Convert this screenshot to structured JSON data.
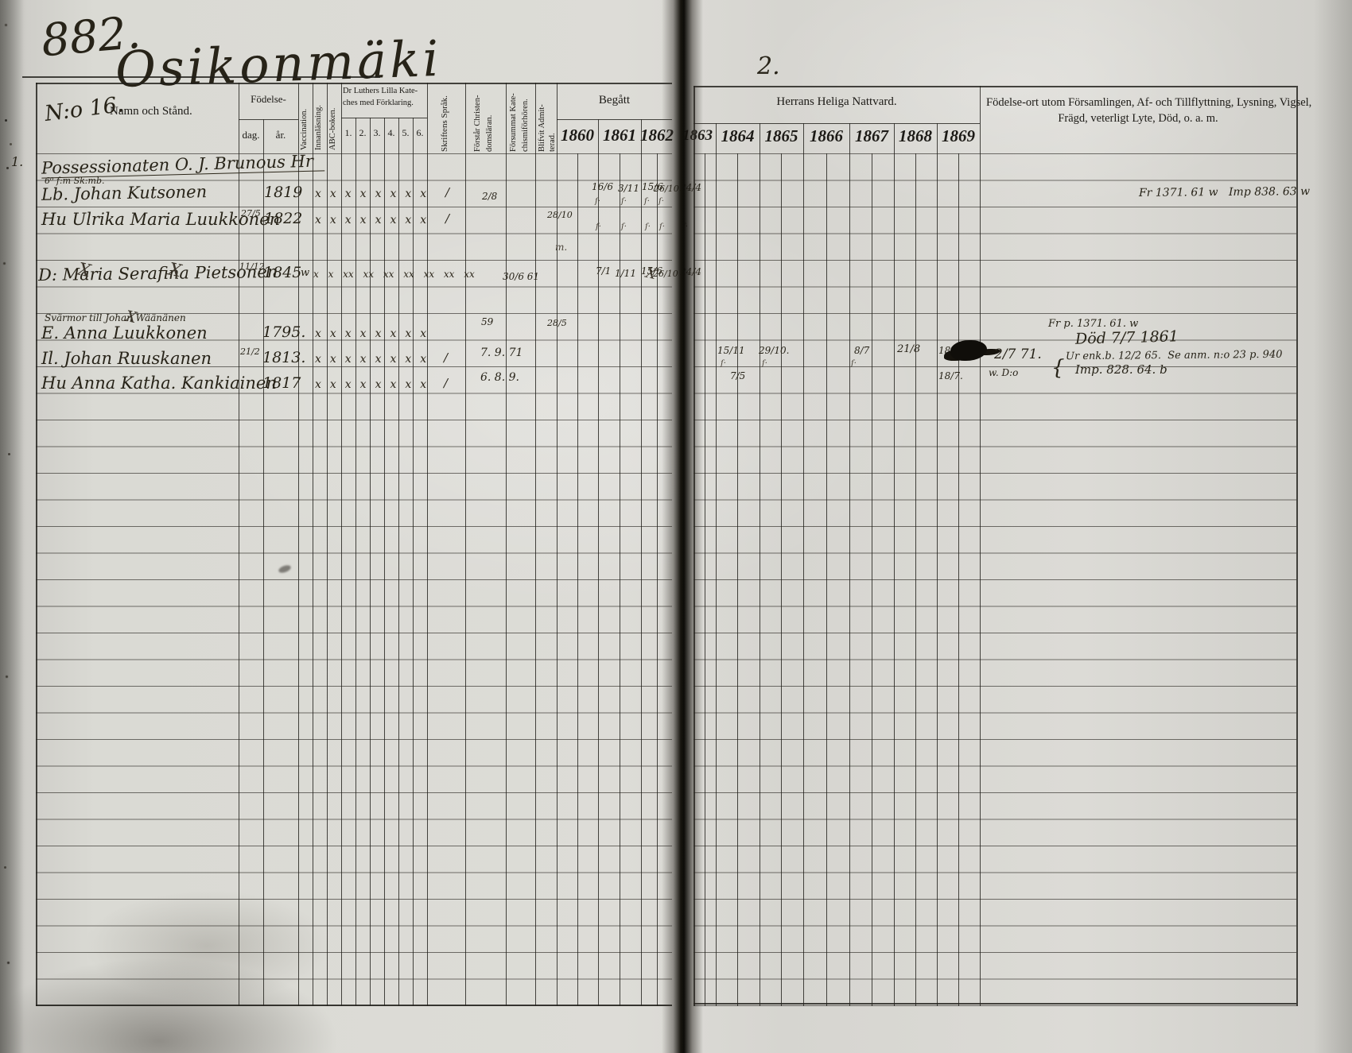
{
  "page": {
    "book_number": "882.",
    "title": "Osikonmäki",
    "right_page_number": "2."
  },
  "header": {
    "no_label": "N:o 16.",
    "name": "Namn och Stånd.",
    "birth": "Födelse-",
    "birth_day": "dag.",
    "birth_year": "år.",
    "vaccination": "Vaccination.",
    "reading": "Innanläsning.",
    "abc": "ABC-boken.",
    "catechism_l1": "Dr Luthers Lilla Kate-",
    "catechism_l2": "ches med Förklaring.",
    "catechism_cols": [
      "1.",
      "2.",
      "3.",
      "4.",
      "5.",
      "6."
    ],
    "scripture": "Skriftens Språk.",
    "understands_l1": "Förstår Christen-",
    "understands_l2": "domsläran.",
    "missed_l1": "Försummat Kate-",
    "missed_l2": "chismiförhören.",
    "admitted_l1": "Blifvit Admit-",
    "admitted_l2": "terad.",
    "begatt": "Begått",
    "communion": "Herrans Heliga Nattvard.",
    "years_left": [
      "1860",
      "1861",
      "1862"
    ],
    "years_right": [
      "1863",
      "1864",
      "1865",
      "1866",
      "1867",
      "1868",
      "1869"
    ],
    "notes_l1": "Födelse-ort utom Församlingen, Af- och Tillflyttning, Lysning, Vigsel,",
    "notes_l2": "Frägd, veterligt Lyte, Död, o. a. m."
  },
  "entries": {
    "margin_no": "1.",
    "r1": {
      "name": "Possessionaten O. J. Brunous Hr"
    },
    "r2": {
      "note_above": "6⁰ f:m Sk:mb.",
      "name": "Lb. Johan Kutsonen",
      "born_year": "1819",
      "marks": "xxxxxxxx",
      "lang": "/",
      "grade": "2/8",
      "d1861a": "16/6",
      "d1861b": "3/11",
      "d1862a": "15/6",
      "d1862b": "26/10",
      "d1863": "24/4",
      "sign": "ſ·",
      "note": "Fr 1371. 61 w   Imp 838. 63 w"
    },
    "r3": {
      "name": "Hu Ulrika Maria Luukkonen",
      "born_day": "27/5",
      "born_year": "1822",
      "marks": "xxxxxxxx",
      "lang": "/",
      "admitted": "28/10",
      "sign": "ſ·"
    },
    "r4": {
      "sign": "m."
    },
    "r5": {
      "name": "D: Maria Serafina Pietsonen",
      "born_day": "11/12",
      "born_year": "1845",
      "vacc": "w",
      "marks": "x x xx xx xx xx xx xx xx",
      "missed": "30/6 61",
      "d1861a": "7/1",
      "d1861b": "1/11",
      "d1862a": "15/6",
      "d1862b": "26/10",
      "d1863": "24/4",
      "strike": "X"
    },
    "r7": {
      "note_above": "Svärmor till Johan Wäänänen",
      "name": "E. Anna Luukkonen",
      "born_year": "1795.",
      "marks": "xxxxxxxx",
      "grade": "59",
      "admitted": "28/5",
      "note1": "Fr p. 1371. 61. w",
      "note2": "Död 7/7 1861",
      "strike": "X"
    },
    "r8": {
      "name": "Il. Johan Ruuskanen",
      "born_day": "21/2",
      "born_year": "1813.",
      "marks": "xxxxxxxx",
      "lang": "/",
      "grade": "7. 9. 71",
      "d1864": "15/11",
      "d1865": "29/10.",
      "d1867": "8/7",
      "d1868": "21/8",
      "d1869": "18/7",
      "sign": "ſ·",
      "after_blot": "2/7 71.",
      "note1": "Ur enk.b. 12/2 65.  Se anm. n:o 23 p. 940",
      "brace": "{",
      "note2": "Imp. 828. 64. b"
    },
    "r9": {
      "name": "Hu Anna Katha. Kankiainen",
      "born_year": "1817",
      "marks": "xxxxxxxx",
      "lang": "/",
      "grade": "6. 8. 9.",
      "d1864": "7/5",
      "d1869": "18/7.",
      "note": "w. D:o"
    }
  }
}
